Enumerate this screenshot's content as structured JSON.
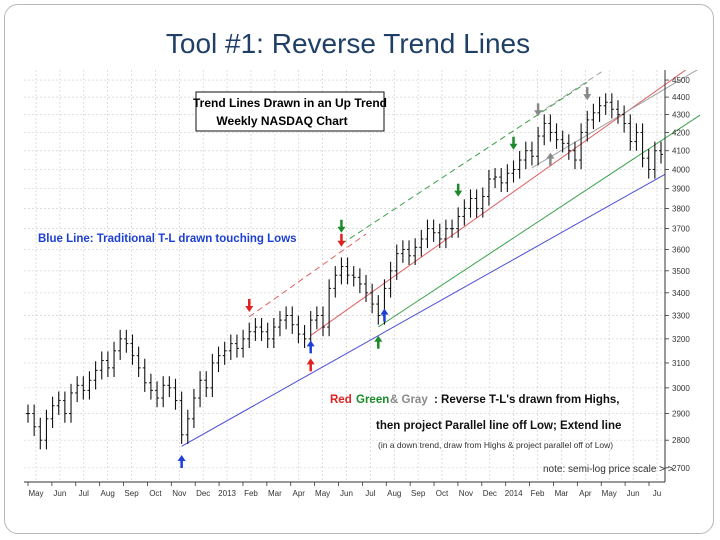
{
  "slide": {
    "title": "Tool #1: Reverse Trend Lines"
  },
  "chart_data": {
    "type": "ohlc",
    "title": "Trend Lines Drawn in an Up Trend",
    "subtitle": "Weekly NASDAQ Chart",
    "y_scale": "log",
    "ylim": [
      2650,
      4560
    ],
    "y_ticks": [
      2700,
      2800,
      2900,
      3000,
      3100,
      3200,
      3300,
      3400,
      3500,
      3600,
      3700,
      3800,
      3900,
      4000,
      4100,
      4200,
      4300,
      4400,
      4500
    ],
    "x_ticks": [
      "May",
      "Jun",
      "Jul",
      "Aug",
      "Sep",
      "Oct",
      "Nov",
      "Dec",
      "2013",
      "Feb",
      "Mar",
      "Apr",
      "May",
      "Jun",
      "Jul",
      "Aug",
      "Sep",
      "Oct",
      "Nov",
      "Dec",
      "2014",
      "Feb",
      "Mar",
      "Apr",
      "May",
      "Jun",
      "Ju"
    ],
    "grid": true,
    "series": [
      {
        "values": [
          2900,
          2850,
          2800,
          2880,
          2930,
          2950,
          2900,
          2980,
          3010,
          2990,
          3030,
          3070,
          3110,
          3080,
          3150,
          3200,
          3180,
          3130,
          3080,
          3020,
          2990,
          2960,
          3010,
          3000,
          2950,
          2820,
          2880,
          2960,
          3030,
          3000,
          3100,
          3130,
          3150,
          3180,
          3160,
          3200,
          3230,
          3250,
          3230,
          3200,
          3250,
          3280,
          3300,
          3260,
          3220,
          3200,
          3280,
          3300,
          3250,
          3420,
          3480,
          3520,
          3480,
          3470,
          3440,
          3400,
          3350,
          3300,
          3420,
          3500,
          3580,
          3600,
          3570,
          3610,
          3650,
          3700,
          3680,
          3650,
          3700,
          3700,
          3760,
          3800,
          3850,
          3800,
          3860,
          3950,
          3960,
          3930,
          3980,
          4000,
          4050,
          4100,
          4070,
          4180,
          4250,
          4200,
          4160,
          4140,
          4100,
          4050,
          4200,
          4270,
          4310,
          4350,
          4370,
          4330,
          4300,
          4250,
          4150,
          4200,
          4060,
          4000,
          4100,
          4080
        ]
      }
    ],
    "markers": [
      {
        "color": "#1c3fd6",
        "direction": "up"
      },
      {
        "color": "#1c3fd6",
        "direction": "up"
      },
      {
        "color": "#1c3fd6",
        "direction": "up"
      },
      {
        "color": "#e02020",
        "direction": "down"
      },
      {
        "color": "#e02020",
        "direction": "up"
      },
      {
        "color": "#e02020",
        "direction": "down"
      },
      {
        "color": "#1a8a2a",
        "direction": "down"
      },
      {
        "color": "#1a8a2a",
        "direction": "up"
      },
      {
        "color": "#1a8a2a",
        "direction": "down"
      },
      {
        "color": "#1a8a2a",
        "direction": "down"
      },
      {
        "color": "#888888",
        "direction": "down"
      },
      {
        "color": "#888888",
        "direction": "down"
      },
      {
        "color": "#888888",
        "direction": "up"
      }
    ],
    "trend_lines": [
      {
        "color": "#4b4bd8"
      },
      {
        "color": "#e06060"
      },
      {
        "color": "#3aa04a"
      },
      {
        "color": "#a0a0a0"
      }
    ],
    "annotations": {
      "blue_line": "Blue Line: Traditional T-L drawn touching Lows",
      "red": "Red",
      "green": "Green",
      "gray": "& Gray",
      "rev_text": ": Reverse T-L's drawn from Highs,",
      "line2": "then project Parallel line off Low; Extend line",
      "line3": "(in a down trend, draw from Highs & project parallel off of Low)",
      "note": "note: semi-log price scale > >"
    },
    "colors": {
      "blue_text": "#1c3fd6",
      "red_text": "#e02020",
      "green_text": "#1a8a2a",
      "gray_text": "#8a8a8a",
      "title_color": "#1f3f66"
    }
  }
}
